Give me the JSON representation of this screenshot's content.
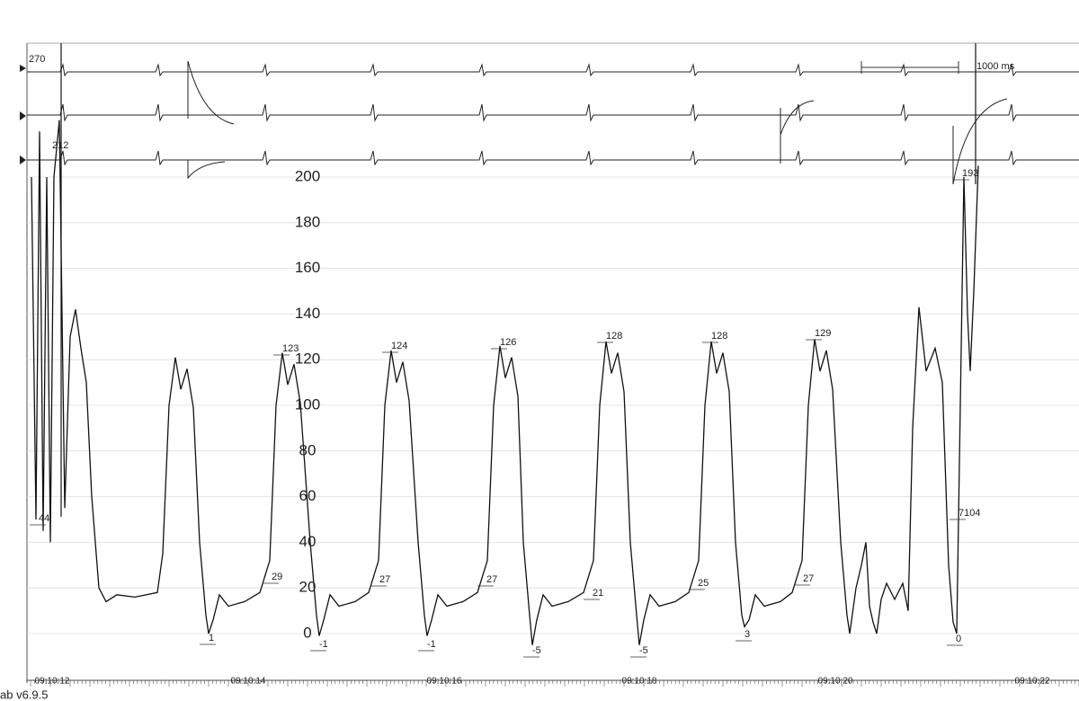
{
  "scale": {
    "ticks": [
      0,
      20,
      40,
      60,
      80,
      100,
      120,
      140,
      160,
      180,
      200
    ]
  },
  "channel_labels": [
    "270",
    "212",
    "1000 ms"
  ],
  "measurements": {
    "peaks": [
      "123",
      "124",
      "126",
      "128",
      "128",
      "129"
    ],
    "troughs": [
      "1",
      "-1",
      "-1",
      "-5",
      "-5",
      "3",
      "0"
    ],
    "diastolic": [
      "29",
      "27",
      "27",
      "21",
      "25",
      "27"
    ],
    "other": [
      "44",
      "193",
      "7104"
    ]
  },
  "times": [
    "09:10:12",
    "09:10:14",
    "09:10:16",
    "09:10:18",
    "09:10:20",
    "09:10:22"
  ],
  "footer": "ab v6.9.5"
}
